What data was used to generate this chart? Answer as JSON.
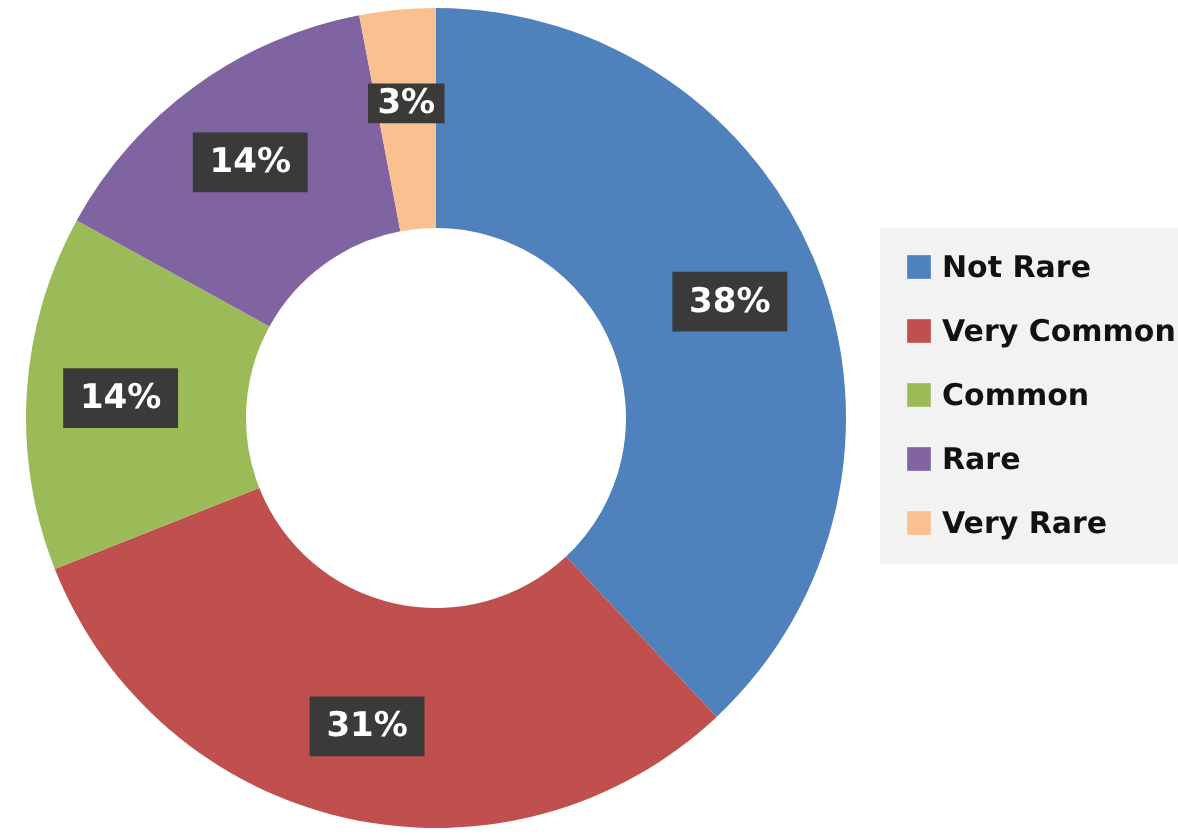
{
  "chart_data": {
    "type": "donut",
    "categories": [
      "Not Rare",
      "Very Common",
      "Common",
      "Rare",
      "Very Rare"
    ],
    "values": [
      38,
      31,
      14,
      14,
      3
    ],
    "colors": [
      "#4f81bd",
      "#c0504d",
      "#9bbb59",
      "#8064a2",
      "#fac090"
    ],
    "value_labels": [
      "38%",
      "31%",
      "14%",
      "14%",
      "3%"
    ],
    "legend": "right"
  }
}
